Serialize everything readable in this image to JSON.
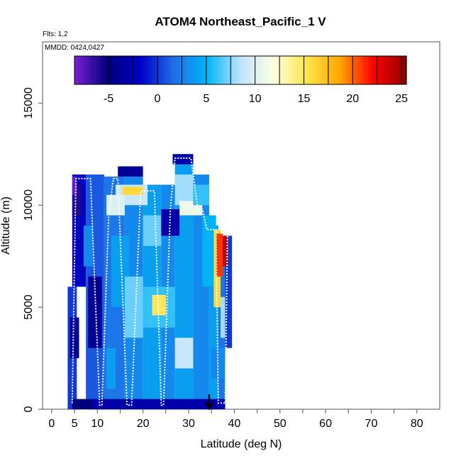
{
  "chart_data": {
    "type": "heatmap",
    "title": "ATOM4 Northeast_Pacific_1 V",
    "subtitle_flights": "Flts: 1,2",
    "subtitle_dates": "MMDD: 0424,0427",
    "xlabel": "Latitude (deg N)",
    "ylabel": "Altitude (m)",
    "xlim": [
      -2,
      85
    ],
    "ylim": [
      0,
      18000
    ],
    "x_ticks": [
      0,
      5,
      10,
      20,
      30,
      40,
      50,
      60,
      70,
      80
    ],
    "x_minor_ticks": [
      15,
      25,
      35,
      45,
      55,
      65,
      75
    ],
    "y_ticks": [
      0,
      5000,
      10000,
      15000
    ],
    "colorbar": {
      "range": [
        -8.5,
        25.5
      ],
      "ticks": [
        -5,
        0,
        5,
        10,
        15,
        20,
        25
      ],
      "colors": [
        "#7a1fd6",
        "#00007a",
        "#0000c8",
        "#1f6fe8",
        "#00b4f5",
        "#bfe4ff",
        "#ffffe0",
        "#ffe44d",
        "#ffa600",
        "#ff0000",
        "#8c0000"
      ]
    },
    "marker": {
      "type": "arrow",
      "x": 34.5
    },
    "cells": [
      {
        "x0": 3.5,
        "x1": 5.5,
        "y0": 0,
        "y1": 6000,
        "v": 0
      },
      {
        "x0": 4.5,
        "x1": 7.5,
        "y0": 6000,
        "y1": 11500,
        "v": -2
      },
      {
        "x0": 7.5,
        "x1": 11.5,
        "y0": 0,
        "y1": 11500,
        "v": 1
      },
      {
        "x0": 11.5,
        "x1": 16,
        "y0": 0,
        "y1": 11400,
        "v": 2
      },
      {
        "x0": 16,
        "x1": 20,
        "y0": 0,
        "y1": 11400,
        "v": 3
      },
      {
        "x0": 20,
        "x1": 24,
        "y0": 0,
        "y1": 11000,
        "v": 4
      },
      {
        "x0": 24,
        "x1": 27,
        "y0": 0,
        "y1": 11000,
        "v": 3
      },
      {
        "x0": 27,
        "x1": 31,
        "y0": 0,
        "y1": 12500,
        "v": 4
      },
      {
        "x0": 31,
        "x1": 34.5,
        "y0": 0,
        "y1": 11500,
        "v": 3
      },
      {
        "x0": 34.5,
        "x1": 36.5,
        "y0": 0,
        "y1": 9000,
        "v": 4
      },
      {
        "x0": 36.5,
        "x1": 38,
        "y0": 0,
        "y1": 8500,
        "v": 2
      },
      {
        "x0": 38,
        "x1": 39.5,
        "y0": 3000,
        "y1": 8500,
        "v": 0
      },
      {
        "x0": 4.5,
        "x1": 9,
        "y0": 0,
        "y1": 500,
        "v": -5
      },
      {
        "x0": 9,
        "x1": 38,
        "y0": 0,
        "y1": 500,
        "v": -3
      },
      {
        "x0": 4,
        "x1": 6,
        "y0": 2500,
        "y1": 4500,
        "v": -4
      },
      {
        "x0": 8,
        "x1": 11,
        "y0": 3000,
        "y1": 6500,
        "v": -4
      },
      {
        "x0": 4.5,
        "x1": 6.5,
        "y0": 9500,
        "y1": 11000,
        "v": -6
      },
      {
        "x0": 4.5,
        "x1": 5.5,
        "y0": 10500,
        "y1": 11400,
        "v": -8
      },
      {
        "x0": 13,
        "x1": 17,
        "y0": 5000,
        "y1": 8500,
        "v": 4
      },
      {
        "x0": 16,
        "x1": 20,
        "y0": 3500,
        "y1": 6500,
        "v": 7
      },
      {
        "x0": 20,
        "x1": 27,
        "y0": 4000,
        "y1": 6000,
        "v": 6
      },
      {
        "x0": 22,
        "x1": 25,
        "y0": 4600,
        "y1": 5600,
        "v": 15
      },
      {
        "x0": 14,
        "x1": 21,
        "y0": 10000,
        "y1": 11000,
        "v": 9
      },
      {
        "x0": 15.5,
        "x1": 20,
        "y0": 10500,
        "y1": 10900,
        "v": 16
      },
      {
        "x0": 12,
        "x1": 16,
        "y0": 9500,
        "y1": 10500,
        "v": 10
      },
      {
        "x0": 20,
        "x1": 24,
        "y0": 8000,
        "y1": 9500,
        "v": 7
      },
      {
        "x0": 24,
        "x1": 28,
        "y0": 8500,
        "y1": 9800,
        "v": -3
      },
      {
        "x0": 27,
        "x1": 31,
        "y0": 10000,
        "y1": 11500,
        "v": 8
      },
      {
        "x0": 28,
        "x1": 33,
        "y0": 9500,
        "y1": 10200,
        "v": 11
      },
      {
        "x0": 31,
        "x1": 34.5,
        "y0": 10000,
        "y1": 11000,
        "v": 6
      },
      {
        "x0": 33,
        "x1": 36,
        "y0": 6000,
        "y1": 9500,
        "v": 5
      },
      {
        "x0": 35.5,
        "x1": 37,
        "y0": 5000,
        "y1": 8800,
        "v": 16
      },
      {
        "x0": 36,
        "x1": 37.5,
        "y0": 6500,
        "y1": 8600,
        "v": 21
      },
      {
        "x0": 37.5,
        "x1": 38.5,
        "y0": 7000,
        "y1": 8500,
        "v": 24
      },
      {
        "x0": 37,
        "x1": 38,
        "y0": 3500,
        "y1": 5500,
        "v": 8
      },
      {
        "x0": 35,
        "x1": 38,
        "y0": 1500,
        "y1": 3000,
        "v": 3
      },
      {
        "x0": 14.5,
        "x1": 20,
        "y0": 11400,
        "y1": 11900,
        "v": -4
      },
      {
        "x0": 26.5,
        "x1": 31,
        "y0": 12000,
        "y1": 12500,
        "v": -3
      },
      {
        "x0": 12,
        "x1": 14,
        "y0": 1000,
        "y1": 3000,
        "v": 4
      },
      {
        "x0": 27,
        "x1": 31,
        "y0": 2000,
        "y1": 3500,
        "v": 9
      },
      {
        "x0": 7,
        "x1": 9,
        "y0": 7000,
        "y1": 9000,
        "v": 3
      }
    ],
    "flight_track": [
      [
        4.5,
        300
      ],
      [
        5.3,
        11300
      ],
      [
        8.5,
        11300
      ],
      [
        10.5,
        200
      ],
      [
        11,
        200
      ],
      [
        12.5,
        9500
      ],
      [
        13.5,
        11300
      ],
      [
        14.5,
        11300
      ],
      [
        16.5,
        200
      ],
      [
        17.5,
        200
      ],
      [
        19.5,
        10700
      ],
      [
        22.5,
        10700
      ],
      [
        24,
        200
      ],
      [
        24.5,
        200
      ],
      [
        26,
        9800
      ],
      [
        27,
        12300
      ],
      [
        30.5,
        12300
      ],
      [
        31,
        11500
      ],
      [
        32,
        9800
      ],
      [
        33,
        9800
      ],
      [
        34,
        8800
      ],
      [
        36,
        8800
      ],
      [
        36.5,
        300
      ],
      [
        38,
        300
      ],
      [
        38.5,
        8500
      ]
    ],
    "track_color": "#ffffff"
  }
}
